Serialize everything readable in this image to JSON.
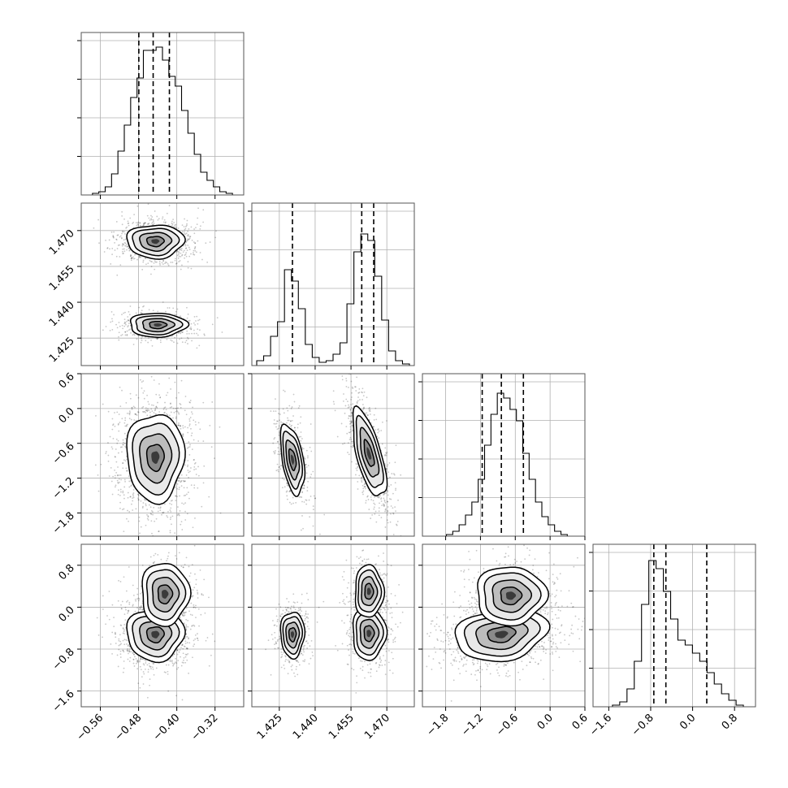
{
  "chart_data": {
    "type": "corner",
    "grid": true,
    "parameters": [
      {
        "range": [
          -0.6,
          -0.26
        ],
        "ticks": [
          -0.56,
          -0.48,
          -0.4,
          -0.32
        ],
        "tick_labels": [
          "−0.56",
          "−0.48",
          "−0.40",
          "−0.32"
        ],
        "quantiles": [
          -0.4795,
          -0.4495,
          -0.4155
        ]
      },
      {
        "range": [
          1.4135,
          1.4815
        ],
        "ticks": [
          1.425,
          1.44,
          1.455,
          1.47
        ],
        "tick_labels": [
          "1.425",
          "1.440",
          "1.455",
          "1.470"
        ],
        "quantiles": [
          1.4305,
          1.4595,
          1.4645
        ]
      },
      {
        "range": [
          -2.2,
          0.6
        ],
        "ticks": [
          -1.8,
          -1.2,
          -0.6,
          0.0,
          0.6
        ],
        "tick_labels": [
          "−1.8",
          "−1.2",
          "−0.6",
          "0.0",
          "0.6"
        ],
        "quantiles": [
          -1.17,
          -0.84,
          -0.46
        ]
      },
      {
        "range": [
          -1.9,
          1.2
        ],
        "ticks": [
          -1.6,
          -0.8,
          0.0,
          0.8
        ],
        "tick_labels": [
          "−1.6",
          "−0.8",
          "0.0",
          "0.8"
        ],
        "quantiles": [
          -0.74,
          -0.51,
          0.27
        ]
      }
    ],
    "histograms": [
      {
        "param": 0,
        "ymax": 1.0,
        "counts": [
          0.0,
          0.01,
          0.02,
          0.05,
          0.13,
          0.27,
          0.43,
          0.6,
          0.72,
          0.89,
          0.89,
          0.91,
          0.83,
          0.73,
          0.67,
          0.52,
          0.38,
          0.25,
          0.14,
          0.09,
          0.05,
          0.02,
          0.01,
          0.0
        ]
      },
      {
        "param": 1,
        "ymax": 1.0,
        "counts": [
          0.03,
          0.06,
          0.18,
          0.27,
          0.59,
          0.52,
          0.35,
          0.13,
          0.05,
          0.02,
          0.03,
          0.07,
          0.14,
          0.38,
          0.7,
          0.81,
          0.77,
          0.55,
          0.28,
          0.09,
          0.03,
          0.01
        ]
      },
      {
        "param": 2,
        "ymax": 1.0,
        "counts": [
          0.0,
          0.0,
          0.0,
          0.01,
          0.03,
          0.07,
          0.13,
          0.21,
          0.35,
          0.56,
          0.75,
          0.88,
          0.85,
          0.78,
          0.71,
          0.51,
          0.35,
          0.21,
          0.12,
          0.07,
          0.03,
          0.01,
          0.0,
          0.0
        ]
      },
      {
        "param": 3,
        "ymax": 1.0,
        "counts": [
          0.0,
          0.0,
          0.01,
          0.03,
          0.11,
          0.28,
          0.63,
          0.9,
          0.85,
          0.71,
          0.54,
          0.41,
          0.38,
          0.33,
          0.28,
          0.21,
          0.14,
          0.08,
          0.04,
          0.01,
          0.0
        ]
      }
    ],
    "joint_modes": [
      {
        "x": 0,
        "y": 1,
        "modes": [
          {
            "mx": -0.445,
            "my": 1.4655,
            "sx": 0.03,
            "sy": 0.0035,
            "rho": 0.0,
            "w": 0.62
          },
          {
            "mx": -0.44,
            "my": 1.4305,
            "sx": 0.03,
            "sy": 0.0025,
            "rho": 0.0,
            "w": 0.38
          }
        ]
      },
      {
        "x": 0,
        "y": 2,
        "modes": [
          {
            "mx": -0.445,
            "my": -0.84,
            "sx": 0.03,
            "sy": 0.38,
            "rho": 0.0,
            "w": 1.0
          }
        ]
      },
      {
        "x": 1,
        "y": 2,
        "modes": [
          {
            "mx": 1.4305,
            "my": -0.88,
            "sx": 0.0025,
            "sy": 0.3,
            "rho": -0.45,
            "w": 0.38
          },
          {
            "mx": 1.4625,
            "my": -0.78,
            "sx": 0.0035,
            "sy": 0.38,
            "rho": -0.65,
            "w": 0.62
          }
        ]
      },
      {
        "x": 0,
        "y": 3,
        "modes": [
          {
            "mx": -0.445,
            "my": -0.52,
            "sx": 0.03,
            "sy": 0.25,
            "rho": 0.0,
            "w": 0.75
          },
          {
            "mx": -0.425,
            "my": 0.25,
            "sx": 0.025,
            "sy": 0.3,
            "rho": 0.0,
            "w": 0.25
          }
        ]
      },
      {
        "x": 1,
        "y": 3,
        "modes": [
          {
            "mx": 1.4305,
            "my": -0.52,
            "sx": 0.0025,
            "sy": 0.22,
            "rho": 0.0,
            "w": 0.38
          },
          {
            "mx": 1.4625,
            "my": -0.5,
            "sx": 0.0035,
            "sy": 0.25,
            "rho": 0.0,
            "w": 0.38
          },
          {
            "mx": 1.4625,
            "my": 0.3,
            "sx": 0.003,
            "sy": 0.25,
            "rho": 0.0,
            "w": 0.24
          }
        ]
      },
      {
        "x": 2,
        "y": 3,
        "modes": [
          {
            "mx": -0.84,
            "my": -0.52,
            "sx": 0.4,
            "sy": 0.25,
            "rho": 0.2,
            "w": 0.75
          },
          {
            "mx": -0.68,
            "my": 0.22,
            "sx": 0.3,
            "sy": 0.28,
            "rho": 0.0,
            "w": 0.25
          }
        ]
      }
    ]
  }
}
